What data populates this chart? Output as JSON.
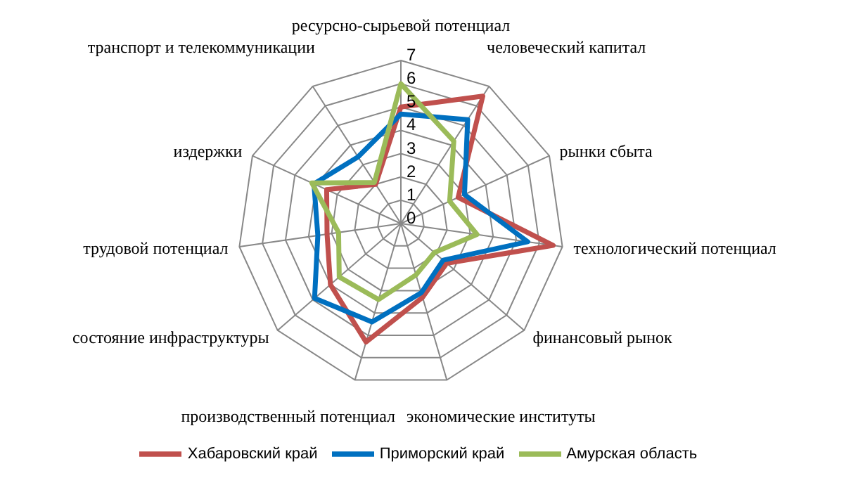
{
  "chart_data": {
    "type": "radar",
    "categories": [
      "ресурсно-сырьевой потенциал",
      "человеческий капитал",
      "рынки сбыта",
      "технологический потенциал",
      "финансовый рынок",
      "экономические институты",
      "производственный потенциал",
      "состояние инфраструктуры",
      "трудовой потенциал",
      "издержки",
      "транспорт и телекоммуникации"
    ],
    "series": [
      {
        "name": "Хабаровский край",
        "color": "#c0504d",
        "values": [
          5.0,
          6.5,
          2.7,
          6.6,
          2.6,
          3.3,
          5.3,
          4.0,
          3.2,
          3.5,
          2.0
        ]
      },
      {
        "name": "Приморский край",
        "color": "#0070c0",
        "values": [
          4.7,
          5.3,
          3.0,
          5.5,
          2.4,
          3.1,
          4.4,
          4.9,
          3.6,
          4.1,
          3.4
        ]
      },
      {
        "name": "Амурская область",
        "color": "#9bbb59",
        "values": [
          6.0,
          4.2,
          2.3,
          3.3,
          1.9,
          2.3,
          3.4,
          3.5,
          2.7,
          4.2,
          2.1
        ]
      }
    ],
    "ylim": [
      0,
      7
    ],
    "yticks": [
      0,
      1,
      2,
      3,
      4,
      5,
      6,
      7
    ],
    "grid": true,
    "legend": "bottom"
  }
}
